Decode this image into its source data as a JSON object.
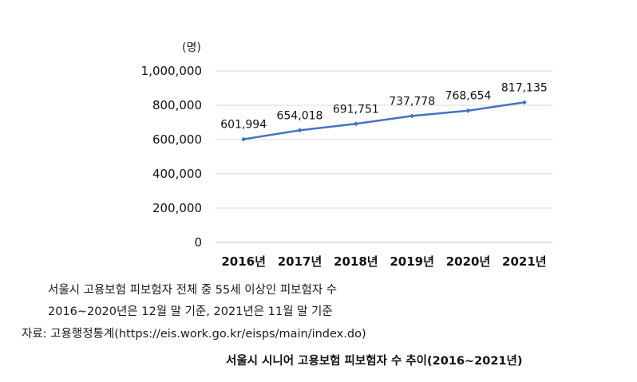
{
  "chart_data": {
    "type": "line",
    "title": "서울시 시니어 고용보험 피보험자 수 추이(2016~2021년)",
    "ylabel": "(명)",
    "xlabel": "",
    "categories": [
      "2016년",
      "2017년",
      "2018년",
      "2019년",
      "2020년",
      "2021년"
    ],
    "series": [
      {
        "name": "서울시 고용보험 피보험자 전체 중 55세 이상인 피보험자 수",
        "values": [
          601994,
          654018,
          691751,
          737778,
          768654,
          817135
        ]
      }
    ],
    "data_labels": [
      "601,994",
      "654,018",
      "691,751",
      "737,778",
      "768,654",
      "817,135"
    ],
    "ylim": [
      0,
      1000000
    ],
    "yticks": [
      0,
      200000,
      400000,
      600000,
      800000,
      1000000
    ],
    "ytick_labels": [
      "0",
      "200,000",
      "400,000",
      "600,000",
      "800,000",
      "1,000,000"
    ],
    "grid": true,
    "color": "#4472c4"
  },
  "notes": {
    "line1": "서울시 고용보험 피보험자 전체 중 55세 이상인 피보험자 수",
    "line2": "2016~2020년은 12월 말 기준, 2021년은 11월 말 기준",
    "source": "자료: 고용행정통계(https://eis.work.go.kr/eisps/main/index.do)"
  }
}
